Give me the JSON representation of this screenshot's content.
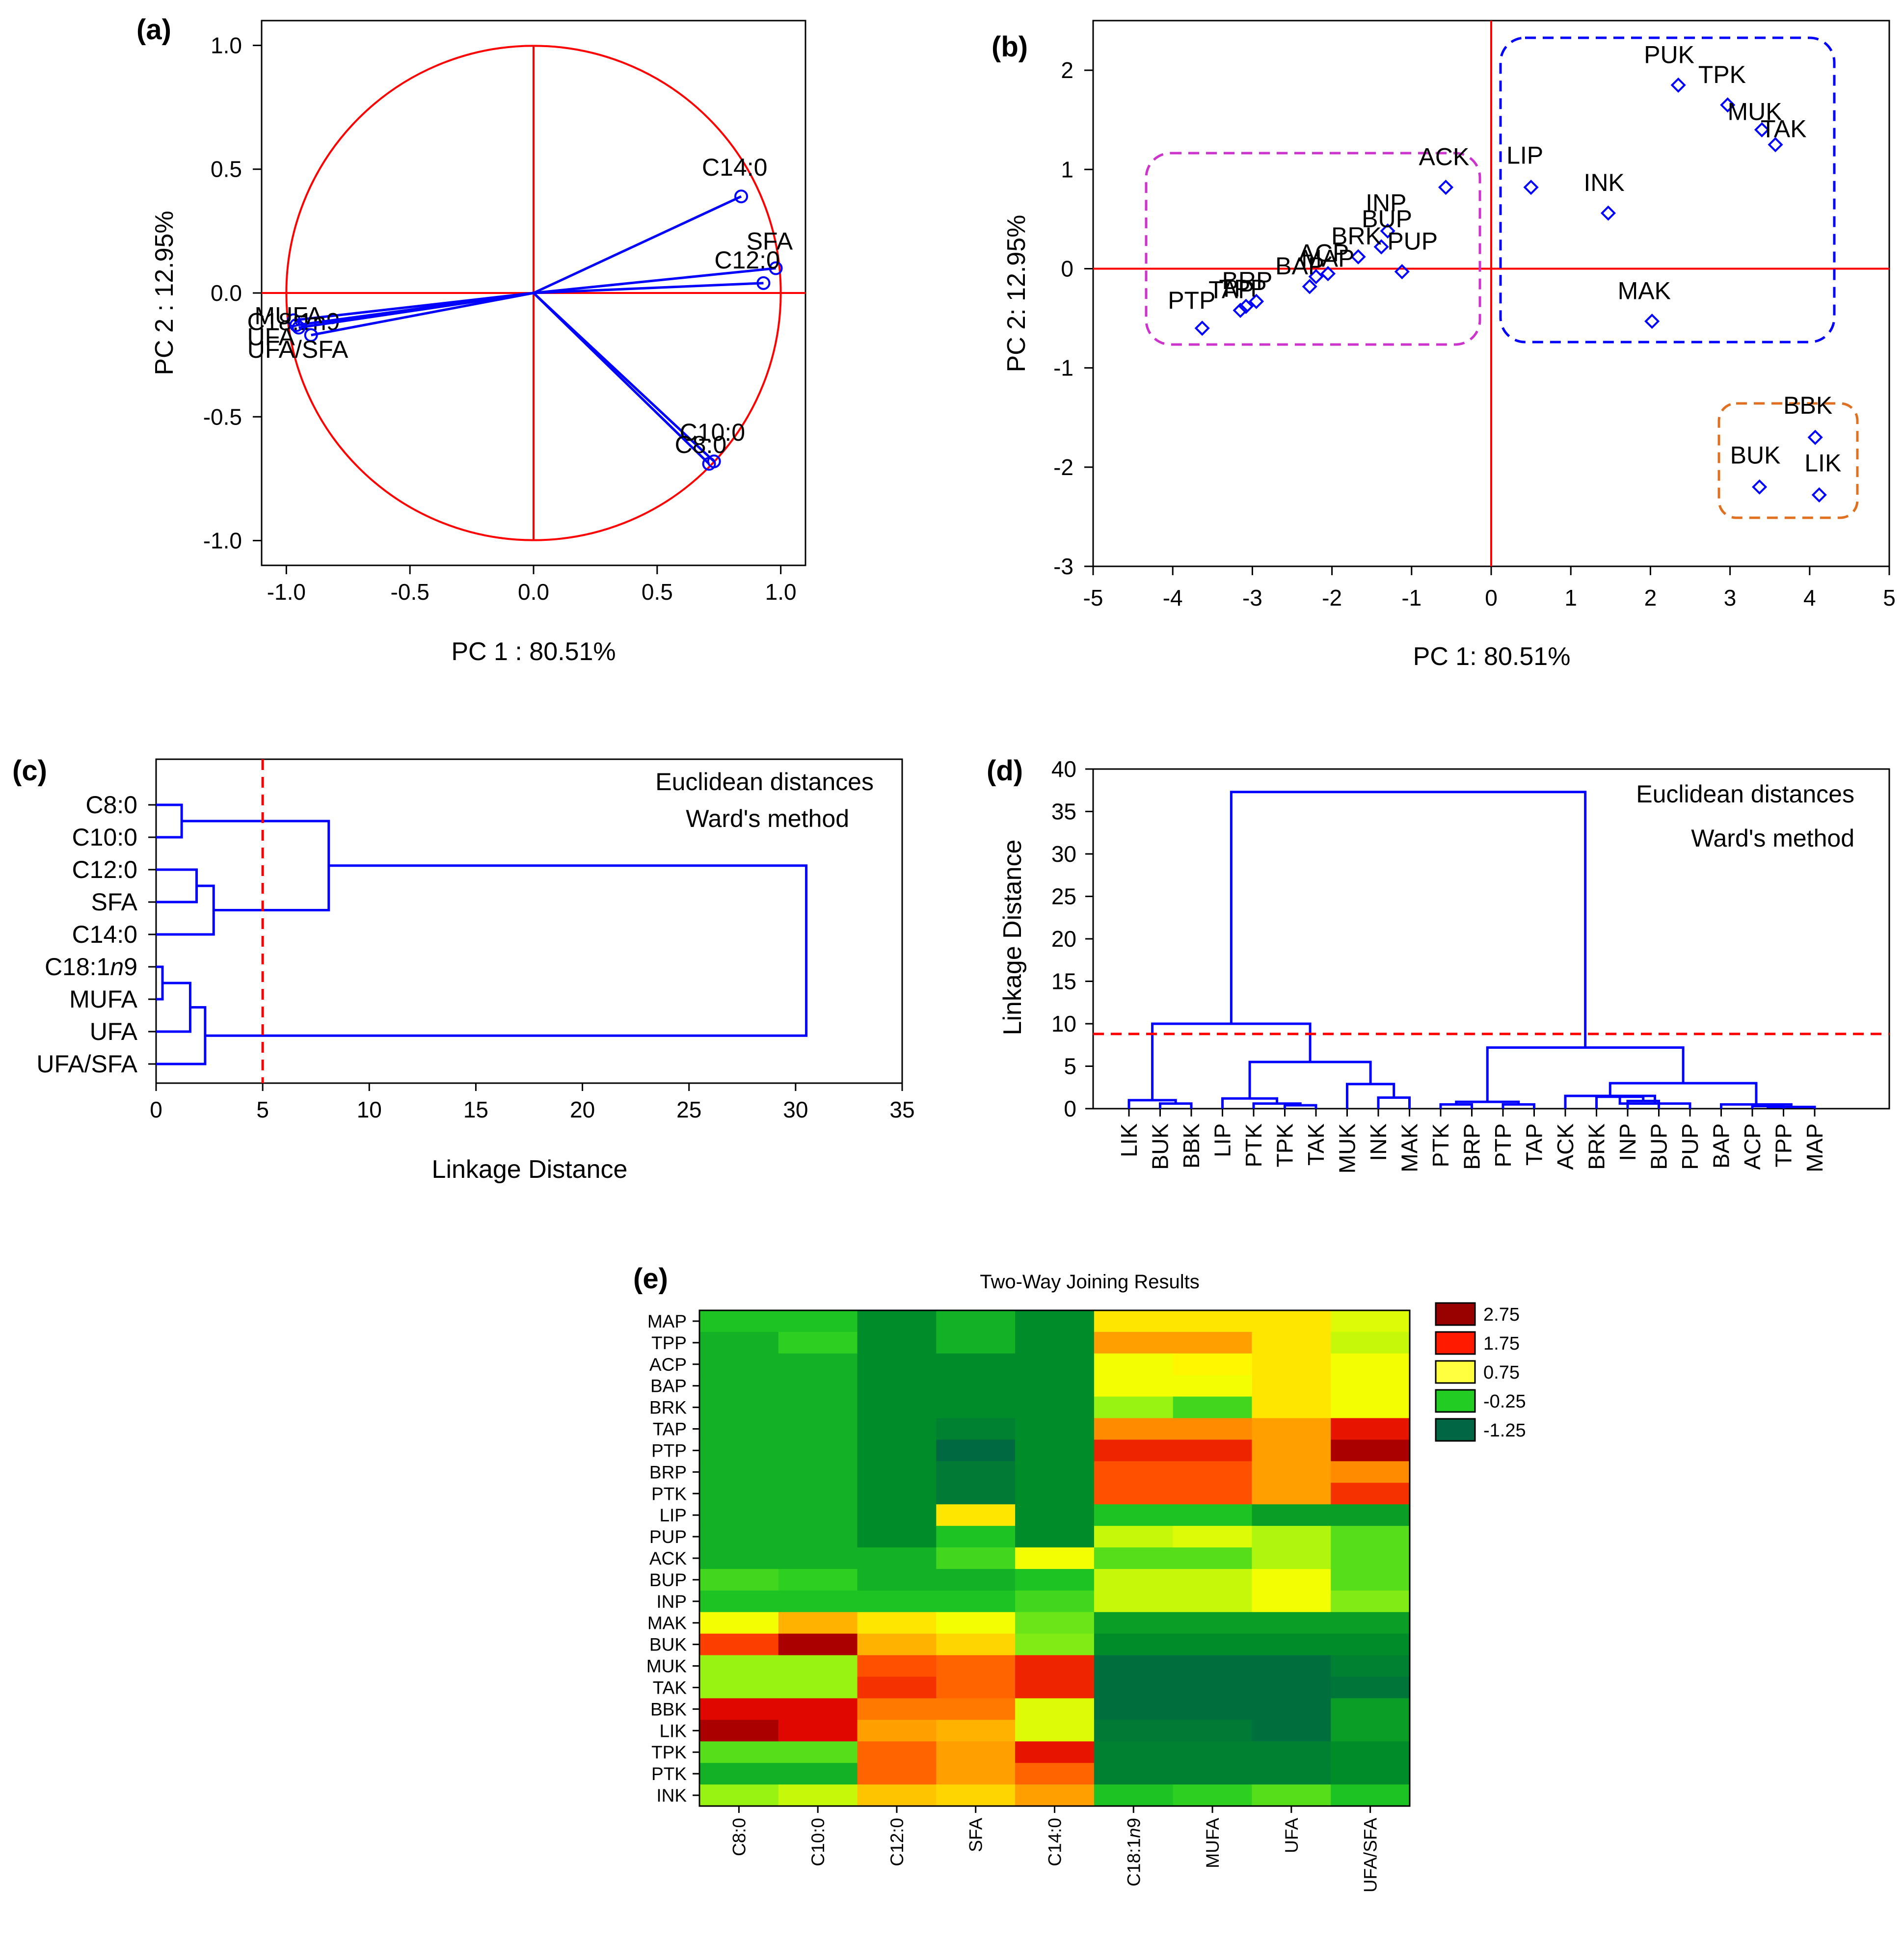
{
  "panels": {
    "a": {
      "tag": "(a)",
      "xlabel": "PC 1 : 80.51%",
      "ylabel": "PC 2 : 12.95%",
      "xlim": [
        -1.1,
        1.1
      ],
      "ylim": [
        -1.1,
        1.1
      ],
      "xticks": [
        -1.0,
        -0.5,
        0.0,
        0.5,
        1.0
      ],
      "yticks": [
        -1.0,
        -0.5,
        0.0,
        0.5,
        1.0
      ],
      "xtick_labels": [
        "-1.0",
        "-0.5",
        "0.0",
        "0.5",
        "1.0"
      ],
      "ytick_labels": [
        "-1.0",
        "-0.5",
        "0.0",
        "0.5",
        "1.0"
      ],
      "loadings": [
        {
          "label": "C14:0",
          "x": 0.84,
          "y": 0.39
        },
        {
          "label": "SFA",
          "x": 0.98,
          "y": 0.1
        },
        {
          "label": "C12:0",
          "x": 0.93,
          "y": 0.04
        },
        {
          "label": "C10:0",
          "x": 0.73,
          "y": -0.68
        },
        {
          "label": "C8:0",
          "x": 0.71,
          "y": -0.69
        },
        {
          "label": "C18:1n9",
          "x": -0.97,
          "y": -0.11
        },
        {
          "label": "MUFA",
          "x": -0.96,
          "y": -0.13
        },
        {
          "label": "UFA",
          "x": -0.95,
          "y": -0.14
        },
        {
          "label": "UFA/SFA",
          "x": -0.9,
          "y": -0.17
        }
      ]
    },
    "b": {
      "tag": "(b)",
      "xlabel": "PC 1: 80.51%",
      "ylabel": "PC 2: 12.95%",
      "xlim": [
        -5,
        5
      ],
      "ylim": [
        -3,
        2.5
      ],
      "xticks": [
        -5,
        -4,
        -3,
        -2,
        -1,
        0,
        1,
        2,
        3,
        4,
        5
      ],
      "yticks": [
        -3,
        -2,
        -1,
        0,
        1,
        2
      ],
      "xtick_labels": [
        "-5",
        "-4",
        "-3",
        "-2",
        "-1",
        "0",
        "1",
        "2",
        "3",
        "4",
        "5"
      ],
      "ytick_labels": [
        "-3",
        "-2",
        "-1",
        "0",
        "1",
        "2"
      ],
      "scores": [
        {
          "label": "PUK",
          "x": 2.35,
          "y": 1.85
        },
        {
          "label": "TPK",
          "x": 2.97,
          "y": 1.65
        },
        {
          "label": "MUK",
          "x": 3.4,
          "y": 1.4
        },
        {
          "label": "TAK",
          "x": 3.57,
          "y": 1.25
        },
        {
          "label": "LIP",
          "x": 0.5,
          "y": 0.82
        },
        {
          "label": "INK",
          "x": 1.47,
          "y": 0.56
        },
        {
          "label": "MAK",
          "x": 2.02,
          "y": -0.53
        },
        {
          "label": "ACK",
          "x": -0.57,
          "y": 0.82
        },
        {
          "label": "INP",
          "x": -1.3,
          "y": 0.38
        },
        {
          "label": "BUP",
          "x": -1.38,
          "y": 0.22
        },
        {
          "label": "BRK",
          "x": -1.67,
          "y": 0.12
        },
        {
          "label": "PUP",
          "x": -1.12,
          "y": -0.03
        },
        {
          "label": "ACP",
          "x": -2.05,
          "y": -0.05
        },
        {
          "label": "MAP",
          "x": -2.2,
          "y": -0.08
        },
        {
          "label": "BAP",
          "x": -2.28,
          "y": -0.18
        },
        {
          "label": "BRP",
          "x": -2.95,
          "y": -0.33
        },
        {
          "label": "TPP",
          "x": -3.08,
          "y": -0.38
        },
        {
          "label": "TAP",
          "x": -3.15,
          "y": -0.42
        },
        {
          "label": "PTP",
          "x": -3.63,
          "y": -0.6
        },
        {
          "label": "BBK",
          "x": 4.07,
          "y": -1.7
        },
        {
          "label": "BUK",
          "x": 3.37,
          "y": -2.2
        },
        {
          "label": "LIK",
          "x": 4.12,
          "y": -2.28
        }
      ]
    },
    "c": {
      "tag": "(c)",
      "xlabel": "Linkage Distance",
      "xlim": [
        0,
        35
      ],
      "xticks": [
        0,
        5,
        10,
        15,
        20,
        25,
        30,
        35
      ],
      "xtick_labels": [
        "0",
        "5",
        "10",
        "15",
        "20",
        "25",
        "30",
        "35"
      ],
      "note1": "Euclidean distances",
      "note2": "Ward's method",
      "cut": 5,
      "leaves": [
        "C8:0",
        "C10:0",
        "C12:0",
        "SFA",
        "C14:0",
        "C18:1n9",
        "MUFA",
        "UFA",
        "UFA/SFA"
      ]
    },
    "d": {
      "tag": "(d)",
      "ylabel": "Linkage Distance",
      "ylim": [
        0,
        40
      ],
      "yticks": [
        0,
        5,
        10,
        15,
        20,
        25,
        30,
        35,
        40
      ],
      "ytick_labels": [
        "0",
        "5",
        "10",
        "15",
        "20",
        "25",
        "30",
        "35",
        "40"
      ],
      "note1": "Euclidean distances",
      "note2": "Ward's method",
      "cut": 8.8,
      "leaves": [
        "LIK",
        "BUK",
        "BBK",
        "LIP",
        "PTK",
        "TPK",
        "TAK",
        "MUK",
        "INK",
        "MAK",
        "PTK",
        "BRP",
        "PTP",
        "TAP",
        "ACK",
        "BRK",
        "INP",
        "BUP",
        "PUP",
        "BAP",
        "ACP",
        "TPP",
        "MAP"
      ]
    },
    "e": {
      "tag": "(e)",
      "title": "Two-Way Joining Results",
      "rows": [
        "MAP",
        "TPP",
        "ACP",
        "BAP",
        "BRK",
        "TAP",
        "PTP",
        "BRP",
        "PTK",
        "LIP",
        "PUP",
        "ACK",
        "BUP",
        "INP",
        "MAK",
        "BUK",
        "MUK",
        "TAK",
        "BBK",
        "LIK",
        "TPK",
        "PTK",
        "INK"
      ],
      "cols": [
        "C8:0",
        "C10:0",
        "C12:0",
        "SFA",
        "C14:0",
        "C18:1n9",
        "MUFA",
        "UFA",
        "UFA/SFA"
      ],
      "legend": [
        {
          "label": "2.75",
          "color": "#990000"
        },
        {
          "label": "1.75",
          "color": "#ff1a00"
        },
        {
          "label": "0.75",
          "color": "#ffff40"
        },
        {
          "label": "-0.25",
          "color": "#22cc22"
        },
        {
          "label": "-1.25",
          "color": "#006644"
        }
      ],
      "values": [
        [
          -0.3,
          -0.3,
          -0.6,
          -0.4,
          -0.6,
          0.9,
          0.9,
          0.9,
          0.6
        ],
        [
          -0.4,
          -0.2,
          -0.6,
          -0.4,
          -0.6,
          1.3,
          1.3,
          0.9,
          0.5
        ],
        [
          -0.4,
          -0.4,
          -0.6,
          -0.6,
          -0.6,
          0.7,
          0.8,
          0.9,
          0.7
        ],
        [
          -0.4,
          -0.4,
          -0.6,
          -0.6,
          -0.6,
          0.7,
          0.7,
          0.9,
          0.7
        ],
        [
          -0.4,
          -0.4,
          -0.6,
          -0.6,
          -0.6,
          0.3,
          -0.1,
          0.9,
          0.7
        ],
        [
          -0.4,
          -0.4,
          -0.6,
          -0.8,
          -0.6,
          1.4,
          1.4,
          1.3,
          2.1
        ],
        [
          -0.4,
          -0.4,
          -0.6,
          -1.2,
          -0.6,
          2.0,
          2.0,
          1.3,
          2.6
        ],
        [
          -0.4,
          -0.4,
          -0.6,
          -0.9,
          -0.6,
          1.7,
          1.7,
          1.3,
          1.4
        ],
        [
          -0.4,
          -0.4,
          -0.6,
          -0.9,
          -0.6,
          1.7,
          1.7,
          1.3,
          1.9
        ],
        [
          -0.4,
          -0.4,
          -0.6,
          0.9,
          -0.6,
          -0.3,
          -0.3,
          -0.5,
          -0.5
        ],
        [
          -0.4,
          -0.4,
          -0.6,
          -0.3,
          -0.6,
          0.5,
          0.6,
          0.4,
          0.0
        ],
        [
          -0.4,
          -0.4,
          -0.4,
          -0.1,
          0.7,
          0.0,
          0.0,
          0.4,
          0.0
        ],
        [
          -0.1,
          -0.2,
          -0.4,
          -0.4,
          -0.3,
          0.5,
          0.5,
          0.7,
          0.0
        ],
        [
          -0.3,
          -0.3,
          -0.3,
          -0.3,
          -0.1,
          0.5,
          0.5,
          0.7,
          0.2
        ],
        [
          0.7,
          1.2,
          0.9,
          0.7,
          0.1,
          -0.5,
          -0.5,
          -0.5,
          -0.5
        ],
        [
          1.8,
          2.6,
          1.2,
          1.0,
          0.2,
          -0.6,
          -0.6,
          -0.6,
          -0.6
        ],
        [
          0.3,
          0.3,
          1.7,
          1.6,
          2.0,
          -1.1,
          -1.1,
          -1.1,
          -0.8
        ],
        [
          0.3,
          0.3,
          1.9,
          1.6,
          2.0,
          -1.1,
          -1.1,
          -1.1,
          -1.0
        ],
        [
          2.2,
          2.2,
          1.5,
          1.5,
          0.6,
          -1.1,
          -1.1,
          -1.1,
          -0.5
        ],
        [
          2.6,
          2.2,
          1.3,
          1.2,
          0.6,
          -0.9,
          -0.9,
          -1.1,
          -0.5
        ],
        [
          0.0,
          0.0,
          1.6,
          1.3,
          2.1,
          -0.8,
          -0.8,
          -0.8,
          -0.6
        ],
        [
          -0.4,
          -0.4,
          1.6,
          1.3,
          1.6,
          -0.8,
          -0.8,
          -0.8,
          -0.6
        ],
        [
          0.3,
          0.5,
          1.1,
          1.0,
          1.3,
          -0.3,
          -0.2,
          0.0,
          -0.3
        ]
      ]
    }
  }
}
